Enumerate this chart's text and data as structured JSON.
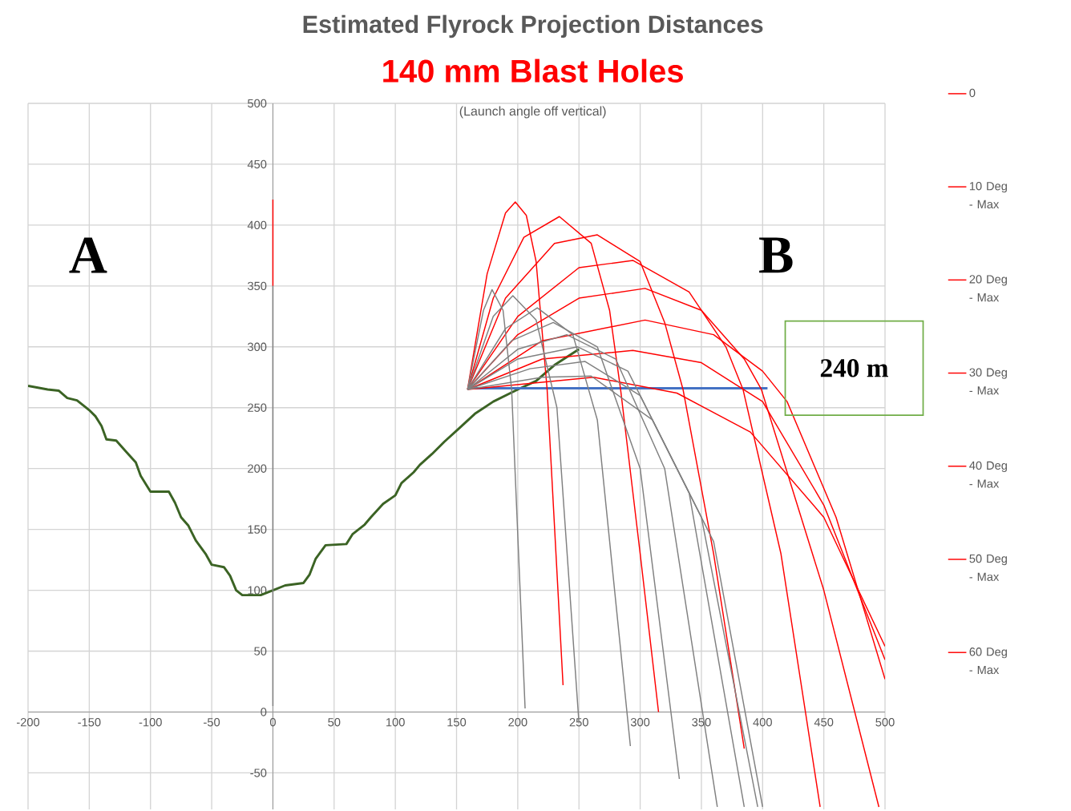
{
  "chart_data": {
    "type": "line",
    "title": "Estimated Flyrock Projection Distances",
    "subtitle": "140 mm Blast Holes",
    "annotations": [
      "(Launch angle off vertical)",
      "A",
      "B",
      "240 m"
    ],
    "xlim": [
      -200,
      500
    ],
    "ylim": [
      -80,
      500
    ],
    "xticks": [
      -200,
      -150,
      -100,
      -50,
      0,
      50,
      100,
      150,
      200,
      250,
      300,
      350,
      400,
      450,
      500
    ],
    "yticks": [
      -50,
      0,
      50,
      100,
      150,
      200,
      250,
      300,
      350,
      400,
      450,
      500
    ],
    "grid": true,
    "legend": "right",
    "series": [
      {
        "color": "#3b6324",
        "x": [
          -200,
          -184,
          -175,
          -168,
          -160,
          -150,
          -145,
          -140,
          -136,
          -128,
          -120,
          -112,
          -108,
          -100,
          -85,
          -80,
          -75,
          -69,
          -63,
          -55,
          -50,
          -40,
          -35,
          -30,
          -25,
          -10,
          -5,
          0,
          10,
          25,
          30,
          35,
          43,
          60,
          65,
          75,
          80,
          90,
          100,
          105,
          115,
          120,
          130,
          140,
          152,
          165,
          180,
          200,
          215,
          230,
          250
        ],
        "values": [
          268,
          265,
          264,
          258,
          256,
          248,
          243,
          235,
          224,
          223,
          214,
          205,
          194,
          181,
          181,
          172,
          160,
          153,
          141,
          130,
          121,
          119,
          112,
          100,
          96,
          96,
          98,
          100,
          104,
          106,
          113,
          126,
          137,
          138,
          146,
          154,
          160,
          171,
          178,
          188,
          197,
          203,
          212,
          222,
          233,
          245,
          255,
          265,
          272,
          285,
          298
        ]
      },
      {
        "color": "#4472c4",
        "x": [
          164,
          404
        ],
        "values": [
          266,
          266
        ]
      },
      {
        "name": "0",
        "color": "#ff0000",
        "x": [
          0,
          0
        ],
        "values": [
          350,
          421
        ]
      },
      {
        "name": "10 Deg - Max",
        "color": "#ff0000",
        "x": [
          159,
          175,
          190,
          198,
          207,
          215,
          224,
          237
        ],
        "values": [
          265,
          360,
          410,
          419,
          408,
          370,
          265,
          22
        ]
      },
      {
        "name": "20 Deg - Max",
        "color": "#ff0000",
        "x": [
          159,
          180,
          205,
          234,
          260,
          275,
          284,
          300,
          315
        ],
        "values": [
          265,
          340,
          390,
          407,
          385,
          330,
          265,
          130,
          0
        ]
      },
      {
        "name": "30 Deg - Max",
        "color": "#ff0000",
        "x": [
          159,
          190,
          230,
          265,
          300,
          320,
          335,
          360,
          385
        ],
        "values": [
          265,
          340,
          385,
          392,
          370,
          320,
          265,
          130,
          -30
        ]
      },
      {
        "name": "40 Deg - Max",
        "color": "#ff0000",
        "x": [
          159,
          200,
          250,
          294,
          340,
          370,
          384,
          415,
          447
        ],
        "values": [
          265,
          325,
          365,
          371,
          345,
          300,
          265,
          130,
          -78
        ]
      },
      {
        "name": "50 Deg - Max",
        "color": "#ff0000",
        "x": [
          159,
          200,
          250,
          304,
          350,
          385,
          399,
          450,
          495
        ],
        "values": [
          265,
          310,
          340,
          348,
          330,
          290,
          265,
          100,
          -78
        ]
      },
      {
        "name": "60 Deg - Max",
        "color": "#ff0000",
        "x": [
          159,
          220,
          304,
          360,
          400,
          420,
          460,
          500
        ],
        "values": [
          265,
          305,
          322,
          310,
          280,
          255,
          160,
          27
        ]
      },
      {
        "color": "#ff0000",
        "x": [
          159,
          220,
          294,
          350,
          400,
          450,
          500
        ],
        "values": [
          265,
          290,
          297,
          287,
          255,
          170,
          43
        ]
      },
      {
        "color": "#ff0000",
        "x": [
          159,
          262,
          330,
          390,
          450,
          500
        ],
        "values": [
          265,
          275,
          262,
          230,
          160,
          54
        ]
      },
      {
        "color": "#808080",
        "x": [
          0,
          0
        ],
        "values": [
          5,
          350
        ]
      },
      {
        "color": "#808080",
        "x": [
          159,
          172,
          179,
          188,
          195,
          206
        ],
        "values": [
          265,
          330,
          347,
          330,
          265,
          3
        ]
      },
      {
        "color": "#808080",
        "x": [
          159,
          180,
          196,
          215,
          232,
          250
        ],
        "values": [
          265,
          325,
          342,
          322,
          250,
          -9
        ]
      },
      {
        "color": "#808080",
        "x": [
          159,
          190,
          216,
          245,
          265,
          292
        ],
        "values": [
          265,
          315,
          332,
          310,
          240,
          -28
        ]
      },
      {
        "color": "#808080",
        "x": [
          159,
          195,
          229,
          265,
          300,
          332
        ],
        "values": [
          265,
          305,
          320,
          300,
          200,
          -55
        ]
      },
      {
        "color": "#808080",
        "x": [
          159,
          200,
          240,
          280,
          320,
          363
        ],
        "values": [
          265,
          298,
          310,
          290,
          200,
          -78
        ]
      },
      {
        "color": "#808080",
        "x": [
          159,
          200,
          249,
          290,
          340,
          385
        ],
        "values": [
          265,
          290,
          300,
          280,
          180,
          -78
        ]
      },
      {
        "color": "#808080",
        "x": [
          159,
          210,
          255,
          300,
          350,
          396
        ],
        "values": [
          265,
          282,
          288,
          260,
          160,
          -78
        ]
      },
      {
        "color": "#808080",
        "x": [
          159,
          220,
          260,
          310,
          360,
          400
        ],
        "values": [
          265,
          275,
          276,
          240,
          140,
          -78
        ]
      }
    ]
  }
}
